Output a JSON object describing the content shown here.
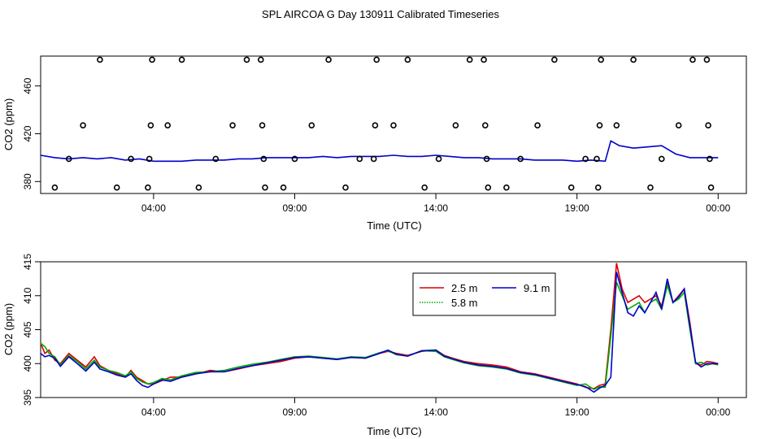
{
  "title": "SPL AIRCOA G  Day 130911  Calibrated Timeseries",
  "colors": {
    "s1": "#dd0000",
    "s2": "#00aa00",
    "s3": "#0000cc",
    "markers": "#000000"
  },
  "chart_data": [
    {
      "type": "scatter",
      "xlabel": "Time (UTC)",
      "ylabel": "CO2 (ppm)",
      "xlim": [
        0,
        25
      ],
      "ylim": [
        370,
        485
      ],
      "xticks": [
        {
          "value": 4,
          "label": "04:00"
        },
        {
          "value": 9,
          "label": "09:00"
        },
        {
          "value": 14,
          "label": "14:00"
        },
        {
          "value": 19,
          "label": "19:00"
        },
        {
          "value": 24,
          "label": "00:00"
        }
      ],
      "yticks": [
        {
          "value": 380,
          "label": "380"
        },
        {
          "value": 420,
          "label": "420"
        },
        {
          "value": 460,
          "label": "460"
        }
      ],
      "line_series": [
        {
          "x": [
            0.0,
            0.5,
            1.0,
            1.5,
            2.0,
            2.5,
            3.0,
            3.5,
            4.0,
            4.5,
            5.0,
            5.5,
            6.0,
            6.5,
            7.0,
            7.5,
            8.0,
            8.5,
            9.0,
            9.5,
            10.0,
            10.5,
            11.0,
            11.5,
            12.0,
            12.5,
            13.0,
            13.5,
            14.0,
            14.5,
            15.0,
            15.5,
            16.0,
            16.5,
            17.0,
            17.5,
            18.0,
            18.5,
            19.0,
            19.5,
            20.0,
            20.2,
            20.5,
            21.0,
            21.5,
            22.0,
            22.5,
            23.0,
            23.5,
            24.0
          ],
          "y": [
            402,
            400,
            399,
            400,
            399,
            400,
            398,
            399,
            397,
            397,
            397,
            398,
            398,
            398,
            399,
            399,
            400,
            400,
            400,
            400,
            401,
            400,
            401,
            401,
            401,
            402,
            401,
            401,
            402,
            401,
            400,
            400,
            399,
            399,
            399,
            398,
            398,
            398,
            397,
            398,
            397,
            414,
            410,
            408,
            409,
            410,
            403,
            400,
            400,
            400
          ]
        }
      ],
      "points": [
        {
          "x": 0.5,
          "y": 375
        },
        {
          "x": 1.0,
          "y": 399
        },
        {
          "x": 1.5,
          "y": 427
        },
        {
          "x": 2.1,
          "y": 482
        },
        {
          "x": 2.7,
          "y": 375
        },
        {
          "x": 3.2,
          "y": 399
        },
        {
          "x": 3.8,
          "y": 375
        },
        {
          "x": 3.85,
          "y": 399
        },
        {
          "x": 3.9,
          "y": 427
        },
        {
          "x": 3.95,
          "y": 482
        },
        {
          "x": 4.5,
          "y": 427
        },
        {
          "x": 5.0,
          "y": 482
        },
        {
          "x": 5.6,
          "y": 375
        },
        {
          "x": 6.2,
          "y": 399
        },
        {
          "x": 6.8,
          "y": 427
        },
        {
          "x": 7.3,
          "y": 482
        },
        {
          "x": 7.8,
          "y": 482
        },
        {
          "x": 7.85,
          "y": 427
        },
        {
          "x": 7.9,
          "y": 399
        },
        {
          "x": 7.95,
          "y": 375
        },
        {
          "x": 8.6,
          "y": 375
        },
        {
          "x": 9.0,
          "y": 399
        },
        {
          "x": 9.6,
          "y": 427
        },
        {
          "x": 10.2,
          "y": 482
        },
        {
          "x": 10.8,
          "y": 375
        },
        {
          "x": 11.3,
          "y": 399
        },
        {
          "x": 11.8,
          "y": 399
        },
        {
          "x": 11.85,
          "y": 427
        },
        {
          "x": 11.9,
          "y": 482
        },
        {
          "x": 12.5,
          "y": 427
        },
        {
          "x": 13.0,
          "y": 482
        },
        {
          "x": 13.6,
          "y": 375
        },
        {
          "x": 14.1,
          "y": 399
        },
        {
          "x": 14.7,
          "y": 427
        },
        {
          "x": 15.2,
          "y": 482
        },
        {
          "x": 15.7,
          "y": 482
        },
        {
          "x": 15.75,
          "y": 427
        },
        {
          "x": 15.8,
          "y": 399
        },
        {
          "x": 15.85,
          "y": 375
        },
        {
          "x": 16.5,
          "y": 375
        },
        {
          "x": 17.0,
          "y": 399
        },
        {
          "x": 17.6,
          "y": 427
        },
        {
          "x": 18.2,
          "y": 482
        },
        {
          "x": 18.8,
          "y": 375
        },
        {
          "x": 19.3,
          "y": 399
        },
        {
          "x": 19.7,
          "y": 399
        },
        {
          "x": 19.75,
          "y": 375
        },
        {
          "x": 19.8,
          "y": 427
        },
        {
          "x": 19.85,
          "y": 482
        },
        {
          "x": 20.4,
          "y": 427
        },
        {
          "x": 21.0,
          "y": 482
        },
        {
          "x": 21.6,
          "y": 375
        },
        {
          "x": 22.0,
          "y": 399
        },
        {
          "x": 22.6,
          "y": 427
        },
        {
          "x": 23.1,
          "y": 482
        },
        {
          "x": 23.6,
          "y": 482
        },
        {
          "x": 23.65,
          "y": 427
        },
        {
          "x": 23.7,
          "y": 399
        },
        {
          "x": 23.75,
          "y": 375
        }
      ]
    },
    {
      "type": "line",
      "xlabel": "Time (UTC)",
      "ylabel": "CO2 (ppm)",
      "xlim": [
        0,
        25
      ],
      "ylim": [
        395,
        415
      ],
      "xticks": [
        {
          "value": 4,
          "label": "04:00"
        },
        {
          "value": 9,
          "label": "09:00"
        },
        {
          "value": 14,
          "label": "14:00"
        },
        {
          "value": 19,
          "label": "19:00"
        },
        {
          "value": 24,
          "label": "00:00"
        }
      ],
      "yticks": [
        {
          "value": 395,
          "label": "395"
        },
        {
          "value": 400,
          "label": "400"
        },
        {
          "value": 405,
          "label": "405"
        },
        {
          "value": 410,
          "label": "410"
        },
        {
          "value": 415,
          "label": "415"
        }
      ],
      "legend": {
        "position": "top-center",
        "columns": 2
      },
      "series": [
        {
          "name": "2.5 m",
          "color": "#dd0000",
          "x": [
            0.0,
            0.15,
            0.3,
            0.5,
            0.7,
            1.0,
            1.3,
            1.6,
            1.9,
            2.1,
            2.4,
            2.7,
            3.0,
            3.2,
            3.4,
            3.6,
            3.8,
            4.0,
            4.3,
            4.6,
            5.0,
            5.5,
            6.0,
            6.5,
            7.0,
            7.5,
            8.0,
            8.5,
            9.0,
            9.5,
            10.0,
            10.5,
            11.0,
            11.5,
            12.0,
            12.3,
            12.6,
            13.0,
            13.5,
            14.0,
            14.3,
            14.6,
            15.0,
            15.5,
            16.0,
            16.5,
            17.0,
            17.5,
            18.0,
            18.5,
            19.0,
            19.3,
            19.6,
            19.8,
            20.0,
            20.2,
            20.4,
            20.6,
            20.8,
            21.0,
            21.2,
            21.4,
            21.6,
            21.8,
            22.0,
            22.2,
            22.4,
            22.6,
            22.8,
            23.0,
            23.2,
            23.4,
            23.6,
            23.8,
            24.0
          ],
          "y": [
            403,
            401.5,
            402,
            400.5,
            400,
            401.5,
            400.5,
            399.5,
            401,
            399.7,
            399,
            398.5,
            398,
            399,
            398,
            397.5,
            397,
            397,
            397.5,
            398,
            398,
            398.5,
            399,
            398.8,
            399.2,
            399.7,
            400,
            400.3,
            400.8,
            401,
            400.8,
            400.6,
            401,
            400.8,
            401.5,
            401.8,
            401.5,
            401.2,
            401.8,
            402,
            401.2,
            400.8,
            400.3,
            400,
            399.8,
            399.5,
            398.8,
            398.5,
            398,
            397.5,
            397,
            396.5,
            396.3,
            396.8,
            397,
            405,
            414.8,
            411,
            409,
            409.5,
            410,
            409,
            409.5,
            410,
            408.5,
            412,
            409,
            410,
            411,
            406,
            400,
            399.8,
            400.3,
            400.2,
            400
          ]
        },
        {
          "name": "5.8 m",
          "color": "#00aa00",
          "x": [
            0.0,
            0.15,
            0.3,
            0.5,
            0.7,
            1.0,
            1.3,
            1.6,
            1.9,
            2.1,
            2.4,
            2.7,
            3.0,
            3.2,
            3.4,
            3.6,
            3.8,
            4.0,
            4.3,
            4.6,
            5.0,
            5.5,
            6.0,
            6.5,
            7.0,
            7.5,
            8.0,
            8.5,
            9.0,
            9.5,
            10.0,
            10.5,
            11.0,
            11.5,
            12.0,
            12.3,
            12.6,
            13.0,
            13.5,
            14.0,
            14.3,
            14.6,
            15.0,
            15.5,
            16.0,
            16.5,
            17.0,
            17.5,
            18.0,
            18.5,
            19.0,
            19.3,
            19.6,
            19.8,
            20.0,
            20.2,
            20.4,
            20.6,
            20.8,
            21.0,
            21.2,
            21.4,
            21.6,
            21.8,
            22.0,
            22.2,
            22.4,
            22.6,
            22.8,
            23.0,
            23.2,
            23.4,
            23.6,
            23.8,
            24.0
          ],
          "y": [
            403,
            402.5,
            401.5,
            401,
            399.8,
            401.2,
            400.3,
            399.2,
            400.5,
            399.5,
            399,
            398.7,
            398.2,
            398.8,
            397.8,
            397.3,
            397,
            397.2,
            397.8,
            397.6,
            398.2,
            398.7,
            398.8,
            399,
            399.5,
            399.9,
            400.2,
            400.6,
            401,
            401.1,
            400.9,
            400.7,
            401,
            400.9,
            401.6,
            401.9,
            401.3,
            401.1,
            401.9,
            401.8,
            401,
            400.6,
            400.1,
            399.7,
            399.5,
            399.2,
            398.6,
            398.3,
            397.8,
            397.3,
            396.8,
            397,
            396.2,
            396.6,
            396.5,
            404,
            412,
            410,
            408,
            408.5,
            409,
            407.5,
            409,
            409.5,
            408,
            411.5,
            409,
            409.5,
            410.5,
            405,
            400,
            400.2,
            399.8,
            400,
            399.8
          ]
        },
        {
          "name": "9.1 m",
          "color": "#0000cc",
          "x": [
            0.0,
            0.15,
            0.3,
            0.5,
            0.7,
            1.0,
            1.3,
            1.6,
            1.9,
            2.1,
            2.4,
            2.7,
            3.0,
            3.2,
            3.4,
            3.6,
            3.8,
            4.0,
            4.3,
            4.6,
            5.0,
            5.5,
            6.0,
            6.5,
            7.0,
            7.5,
            8.0,
            8.5,
            9.0,
            9.5,
            10.0,
            10.5,
            11.0,
            11.5,
            12.0,
            12.3,
            12.6,
            13.0,
            13.5,
            14.0,
            14.3,
            14.6,
            15.0,
            15.5,
            16.0,
            16.5,
            17.0,
            17.5,
            18.0,
            18.5,
            19.0,
            19.3,
            19.6,
            19.8,
            20.0,
            20.2,
            20.4,
            20.6,
            20.8,
            21.0,
            21.2,
            21.4,
            21.6,
            21.8,
            22.0,
            22.2,
            22.4,
            22.6,
            22.8,
            23.0,
            23.2,
            23.4,
            23.6,
            23.8,
            24.0
          ],
          "y": [
            401.5,
            401,
            401.2,
            400.8,
            399.6,
            401,
            400,
            398.9,
            400.2,
            399.2,
            398.8,
            398.3,
            398,
            398.5,
            397.5,
            396.8,
            396.5,
            397,
            397.6,
            397.4,
            398,
            398.5,
            398.8,
            398.8,
            399.3,
            399.7,
            400.1,
            400.5,
            400.9,
            401,
            400.8,
            400.6,
            400.9,
            400.8,
            401.5,
            402,
            401.4,
            401.1,
            401.9,
            402,
            401.1,
            400.7,
            400.2,
            399.8,
            399.6,
            399.3,
            398.7,
            398.4,
            397.9,
            397.4,
            396.9,
            396.6,
            395.8,
            396.4,
            396.8,
            398,
            413.5,
            410.5,
            407.5,
            407,
            408.5,
            407.5,
            409,
            410.5,
            408,
            412.5,
            409,
            409.8,
            411,
            405.5,
            400.2,
            399.5,
            400,
            400,
            400
          ]
        }
      ]
    }
  ]
}
